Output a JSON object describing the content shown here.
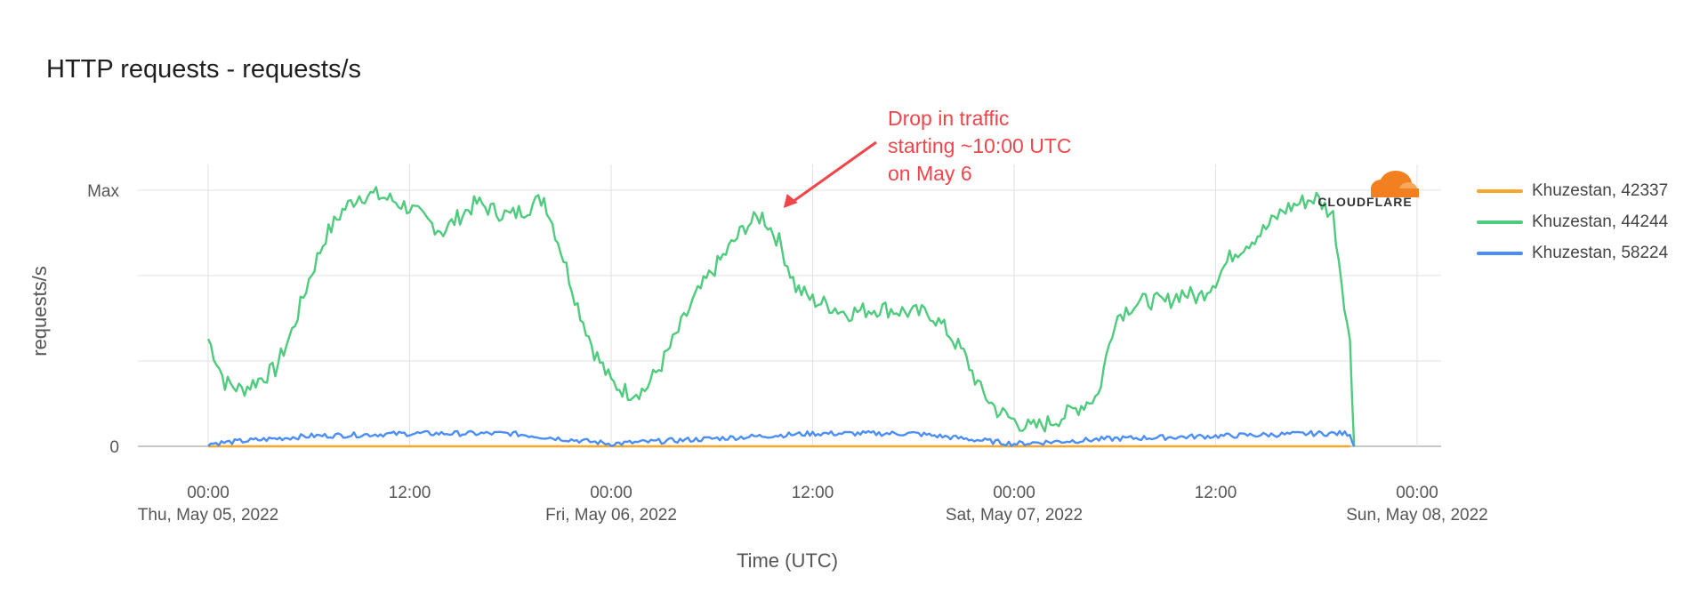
{
  "page": {
    "title": "HTTP requests - requests/s"
  },
  "annotation": {
    "lines": [
      "Drop in traffic",
      "starting ~10:00 UTC",
      "on May 6"
    ]
  },
  "logo": {
    "text": "CLOUDFLARE",
    "icon": "cloudflare-cloud-logo",
    "color": "#f38020"
  },
  "chart_data": {
    "type": "line",
    "title": "HTTP requests - requests/s",
    "xlabel": "Time (UTC)",
    "ylabel": "requests/s",
    "x_range": [
      "2022-05-05T00:00",
      "2022-05-08T00:00"
    ],
    "x_ticks": [
      {
        "t": "2022-05-05T00:00",
        "time": "00:00",
        "date": "Thu, May 05, 2022"
      },
      {
        "t": "2022-05-05T12:00",
        "time": "12:00",
        "date": ""
      },
      {
        "t": "2022-05-06T00:00",
        "time": "00:00",
        "date": "Fri, May 06, 2022"
      },
      {
        "t": "2022-05-06T12:00",
        "time": "12:00",
        "date": ""
      },
      {
        "t": "2022-05-07T00:00",
        "time": "00:00",
        "date": "Sat, May 07, 2022"
      },
      {
        "t": "2022-05-07T12:00",
        "time": "12:00",
        "date": ""
      },
      {
        "t": "2022-05-08T00:00",
        "time": "00:00",
        "date": "Sun, May 08, 2022"
      }
    ],
    "y_ticks": [
      {
        "value": 0,
        "label": "0"
      },
      {
        "value": 1,
        "label": "Max"
      }
    ],
    "ylim": [
      0,
      1.1
    ],
    "grid": true,
    "legend_position": "right",
    "series": [
      {
        "name": "Khuzestan, 42337",
        "color": "#f7a72b",
        "points": [
          [
            "2022-05-05T00:00",
            0.0
          ],
          [
            "2022-05-05T12:00",
            0.0
          ],
          [
            "2022-05-06T00:00",
            0.0
          ],
          [
            "2022-05-06T12:00",
            0.0
          ],
          [
            "2022-05-07T00:00",
            0.0
          ],
          [
            "2022-05-07T12:00",
            0.0
          ],
          [
            "2022-05-07T20:00",
            0.0
          ]
        ]
      },
      {
        "name": "Khuzestan, 44244",
        "color": "#4fcb7d",
        "points": [
          [
            "2022-05-05T00:00",
            0.42
          ],
          [
            "2022-05-05T01:00",
            0.25
          ],
          [
            "2022-05-05T02:00",
            0.22
          ],
          [
            "2022-05-05T03:00",
            0.26
          ],
          [
            "2022-05-05T04:00",
            0.3
          ],
          [
            "2022-05-05T05:00",
            0.45
          ],
          [
            "2022-05-05T06:00",
            0.65
          ],
          [
            "2022-05-05T07:00",
            0.82
          ],
          [
            "2022-05-05T08:00",
            0.92
          ],
          [
            "2022-05-05T09:00",
            0.98
          ],
          [
            "2022-05-05T10:00",
            0.98
          ],
          [
            "2022-05-05T11:00",
            0.96
          ],
          [
            "2022-05-05T12:00",
            0.93
          ],
          [
            "2022-05-05T13:00",
            0.88
          ],
          [
            "2022-05-05T14:00",
            0.84
          ],
          [
            "2022-05-05T15:00",
            0.9
          ],
          [
            "2022-05-05T16:00",
            0.95
          ],
          [
            "2022-05-05T17:00",
            0.92
          ],
          [
            "2022-05-05T18:00",
            0.9
          ],
          [
            "2022-05-05T19:00",
            0.93
          ],
          [
            "2022-05-05T20:00",
            0.97
          ],
          [
            "2022-05-05T21:00",
            0.77
          ],
          [
            "2022-05-05T22:00",
            0.55
          ],
          [
            "2022-05-05T23:00",
            0.37
          ],
          [
            "2022-05-06T00:00",
            0.25
          ],
          [
            "2022-05-06T01:00",
            0.21
          ],
          [
            "2022-05-06T02:00",
            0.22
          ],
          [
            "2022-05-06T03:00",
            0.32
          ],
          [
            "2022-05-06T04:00",
            0.45
          ],
          [
            "2022-05-06T05:00",
            0.58
          ],
          [
            "2022-05-06T06:00",
            0.68
          ],
          [
            "2022-05-06T07:00",
            0.77
          ],
          [
            "2022-05-06T08:00",
            0.86
          ],
          [
            "2022-05-06T09:00",
            0.9
          ],
          [
            "2022-05-06T10:00",
            0.8
          ],
          [
            "2022-05-06T11:00",
            0.62
          ],
          [
            "2022-05-06T12:00",
            0.57
          ],
          [
            "2022-05-06T13:00",
            0.55
          ],
          [
            "2022-05-06T14:00",
            0.52
          ],
          [
            "2022-05-06T15:00",
            0.53
          ],
          [
            "2022-05-06T16:00",
            0.54
          ],
          [
            "2022-05-06T17:00",
            0.53
          ],
          [
            "2022-05-06T18:00",
            0.52
          ],
          [
            "2022-05-06T19:00",
            0.52
          ],
          [
            "2022-05-06T20:00",
            0.45
          ],
          [
            "2022-05-06T21:00",
            0.36
          ],
          [
            "2022-05-06T22:00",
            0.22
          ],
          [
            "2022-05-06T23:00",
            0.14
          ],
          [
            "2022-05-07T00:00",
            0.1
          ],
          [
            "2022-05-07T01:00",
            0.07
          ],
          [
            "2022-05-07T02:00",
            0.09
          ],
          [
            "2022-05-07T03:00",
            0.12
          ],
          [
            "2022-05-07T04:00",
            0.16
          ],
          [
            "2022-05-07T05:00",
            0.2
          ],
          [
            "2022-05-07T06:00",
            0.5
          ],
          [
            "2022-05-07T07:00",
            0.55
          ],
          [
            "2022-05-07T08:00",
            0.57
          ],
          [
            "2022-05-07T09:00",
            0.56
          ],
          [
            "2022-05-07T10:00",
            0.6
          ],
          [
            "2022-05-07T11:00",
            0.58
          ],
          [
            "2022-05-07T12:00",
            0.65
          ],
          [
            "2022-05-07T13:00",
            0.75
          ],
          [
            "2022-05-07T14:00",
            0.8
          ],
          [
            "2022-05-07T15:00",
            0.85
          ],
          [
            "2022-05-07T16:00",
            0.92
          ],
          [
            "2022-05-07T17:00",
            0.95
          ],
          [
            "2022-05-07T18:00",
            0.97
          ],
          [
            "2022-05-07T19:00",
            0.9
          ],
          [
            "2022-05-07T20:00",
            0.4
          ],
          [
            "2022-05-07T20:15",
            0.0
          ]
        ]
      },
      {
        "name": "Khuzestan, 58224",
        "color": "#4c8ef7",
        "points": [
          [
            "2022-05-05T00:00",
            0.01
          ],
          [
            "2022-05-05T06:00",
            0.04
          ],
          [
            "2022-05-05T12:00",
            0.05
          ],
          [
            "2022-05-05T18:00",
            0.05
          ],
          [
            "2022-05-06T00:00",
            0.01
          ],
          [
            "2022-05-06T06:00",
            0.03
          ],
          [
            "2022-05-06T12:00",
            0.05
          ],
          [
            "2022-05-06T18:00",
            0.05
          ],
          [
            "2022-05-07T00:00",
            0.01
          ],
          [
            "2022-05-07T06:00",
            0.03
          ],
          [
            "2022-05-07T12:00",
            0.04
          ],
          [
            "2022-05-07T18:00",
            0.05
          ],
          [
            "2022-05-07T20:00",
            0.05
          ],
          [
            "2022-05-07T20:15",
            0.0
          ]
        ]
      }
    ]
  }
}
